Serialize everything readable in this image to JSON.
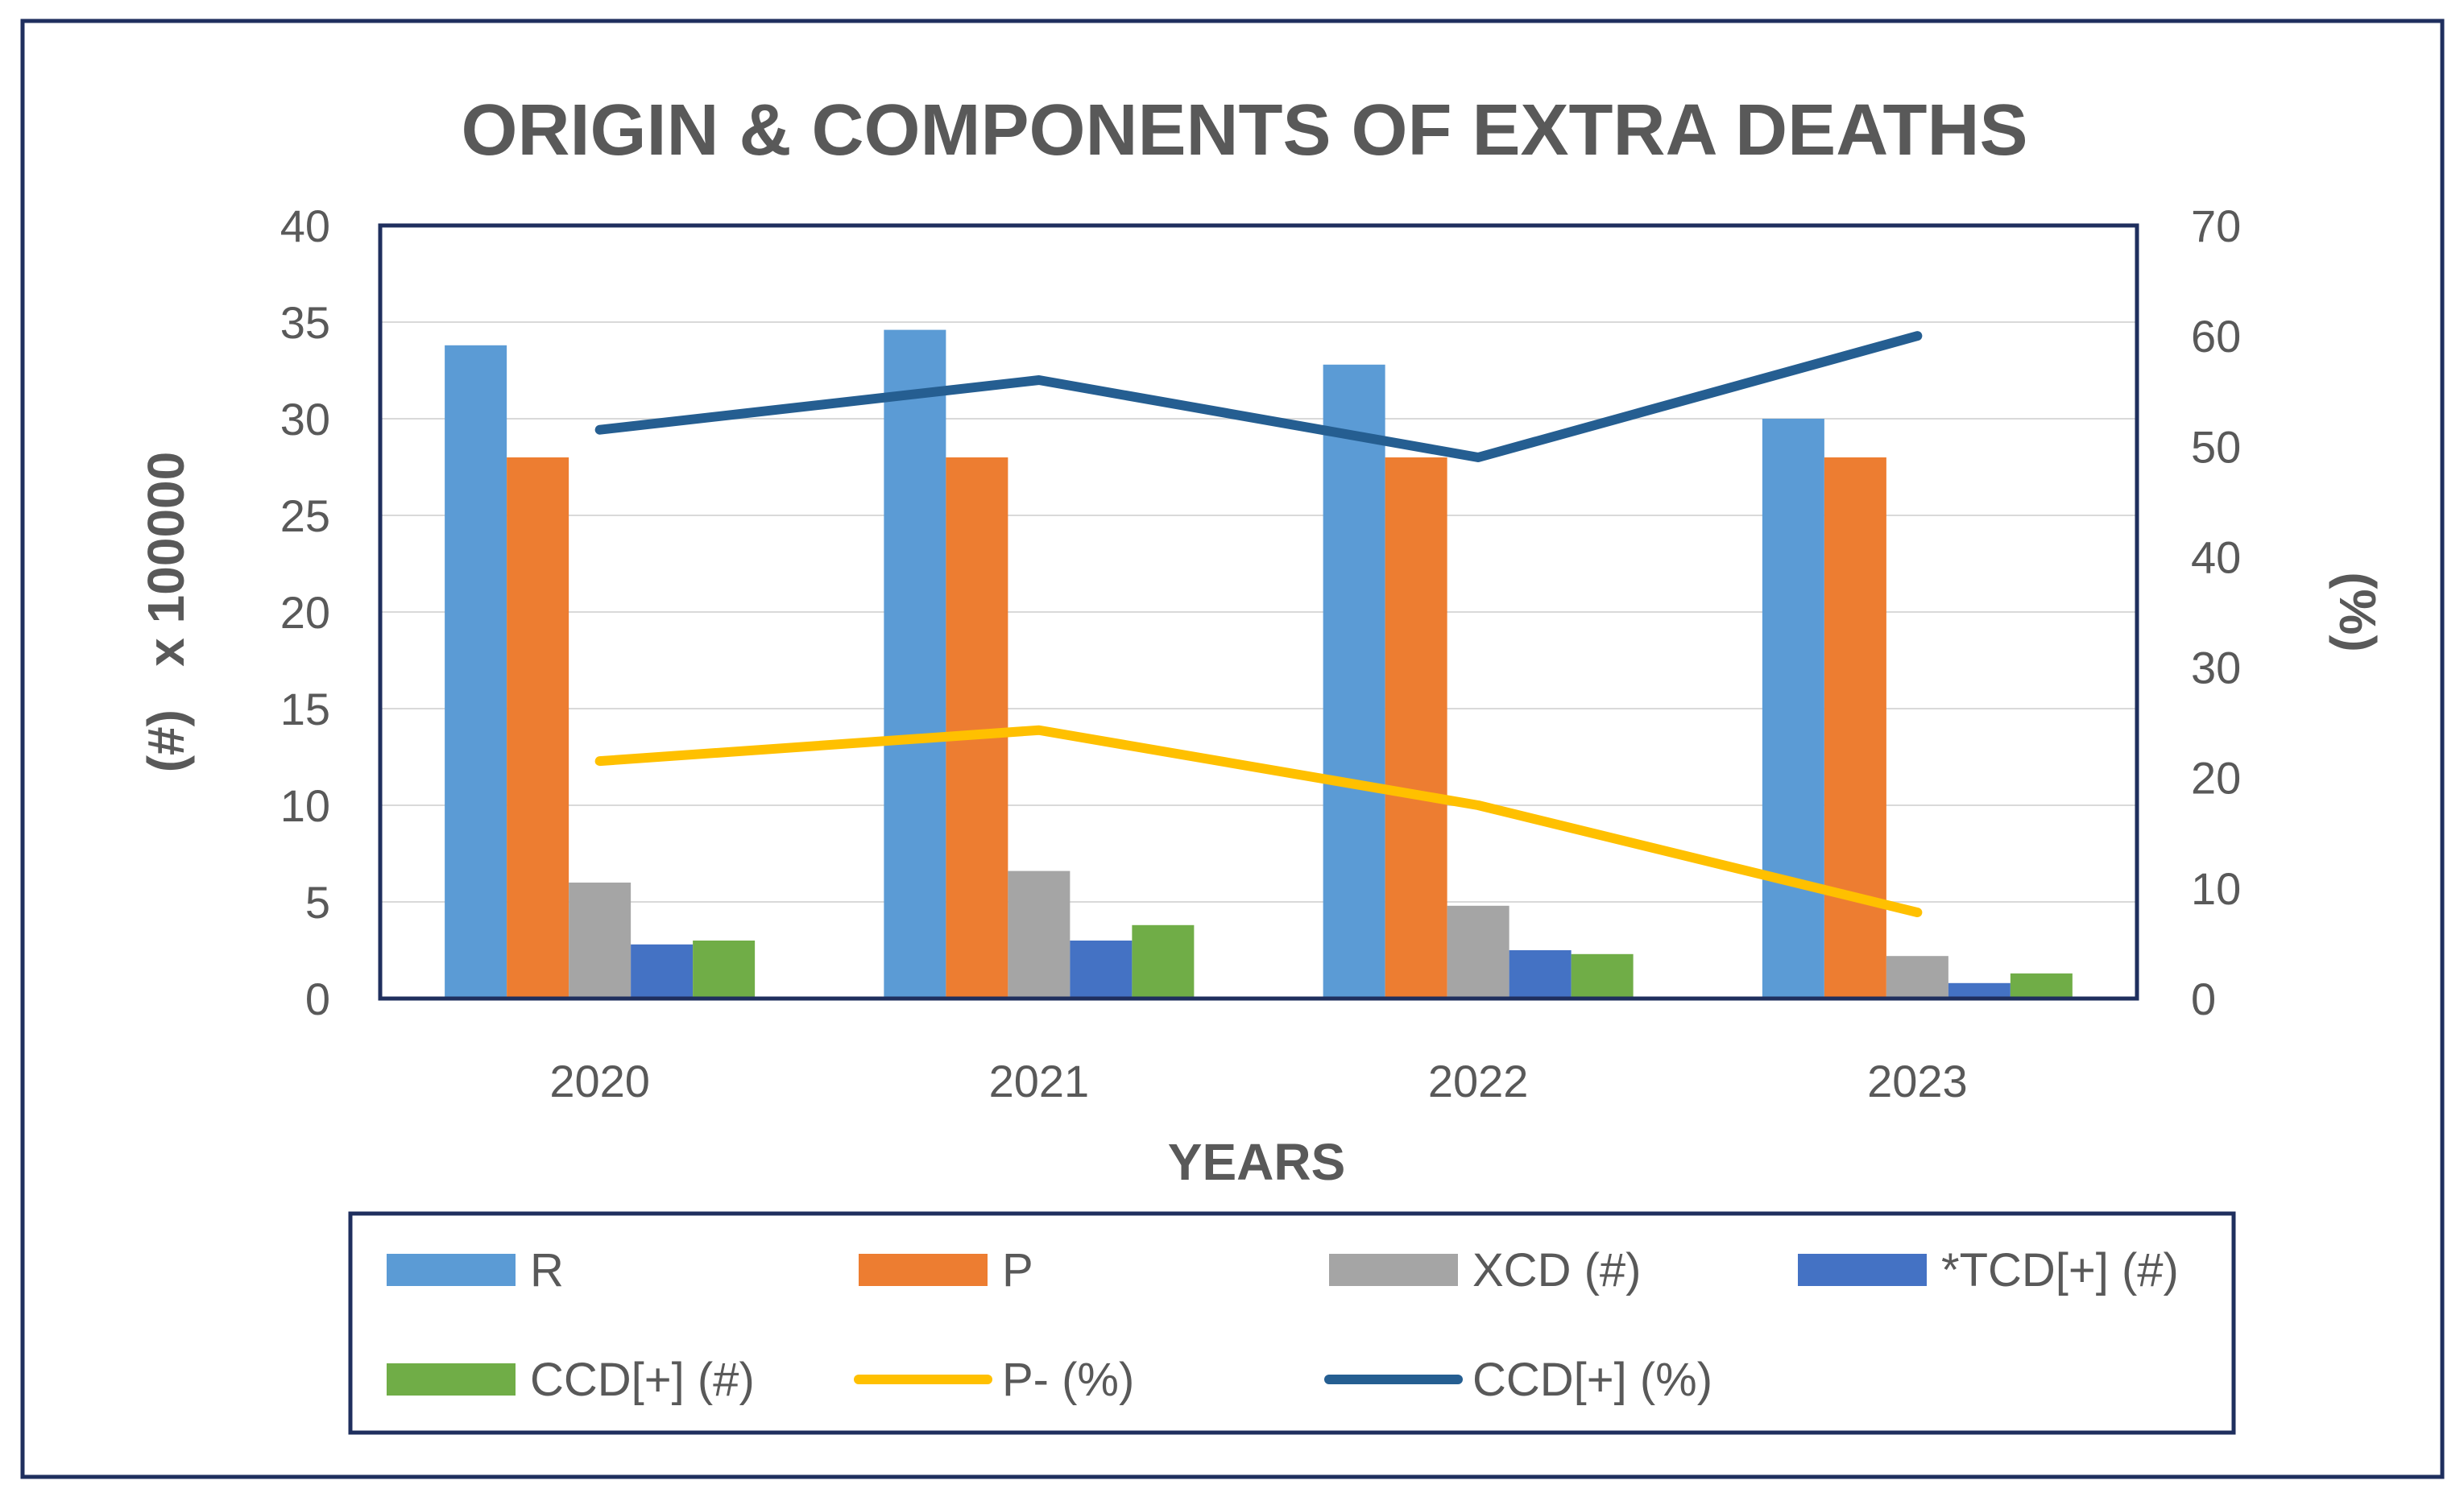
{
  "chart_data": {
    "type": "bar",
    "title": "ORIGIN & COMPONENTS OF EXTRA DEATHS",
    "xlabel": "YEARS",
    "ylabel_left": "(#)   x 100000",
    "ylabel_right": "(%)",
    "ylim_left": [
      0,
      40
    ],
    "ylim_right": [
      0,
      70
    ],
    "yticks_left": [
      "0",
      "5",
      "10",
      "15",
      "20",
      "25",
      "30",
      "35",
      "40"
    ],
    "yticks_right": [
      "0",
      "10",
      "20",
      "30",
      "40",
      "50",
      "60",
      "70"
    ],
    "grid": true,
    "categories": [
      "2020",
      "2021",
      "2022",
      "2023"
    ],
    "bar_series": [
      {
        "name": "R",
        "color": "#5b9bd5",
        "values": [
          33.8,
          34.6,
          32.8,
          30.0
        ]
      },
      {
        "name": "P",
        "color": "#ed7d31",
        "values": [
          28.0,
          28.0,
          28.0,
          28.0
        ]
      },
      {
        "name": "XCD (#)",
        "color": "#a5a5a5",
        "values": [
          6.0,
          6.6,
          4.8,
          2.2
        ]
      },
      {
        "name": "*TCD[+] (#)",
        "color": "#4472c4",
        "values": [
          2.8,
          3.0,
          2.5,
          0.8
        ]
      },
      {
        "name": "CCD[+] (#)",
        "color": "#70ad47",
        "values": [
          3.0,
          3.8,
          2.3,
          1.3
        ]
      }
    ],
    "line_series": [
      {
        "name": "P- (%)",
        "color": "#ffc000",
        "axis": "right",
        "values": [
          21.5,
          24.3,
          17.5,
          7.8
        ]
      },
      {
        "name": "CCD[+] (%)",
        "color": "#255e91",
        "axis": "right",
        "values": [
          51.5,
          56.0,
          49.0,
          60.0
        ]
      }
    ],
    "legend_position": "bottom"
  }
}
